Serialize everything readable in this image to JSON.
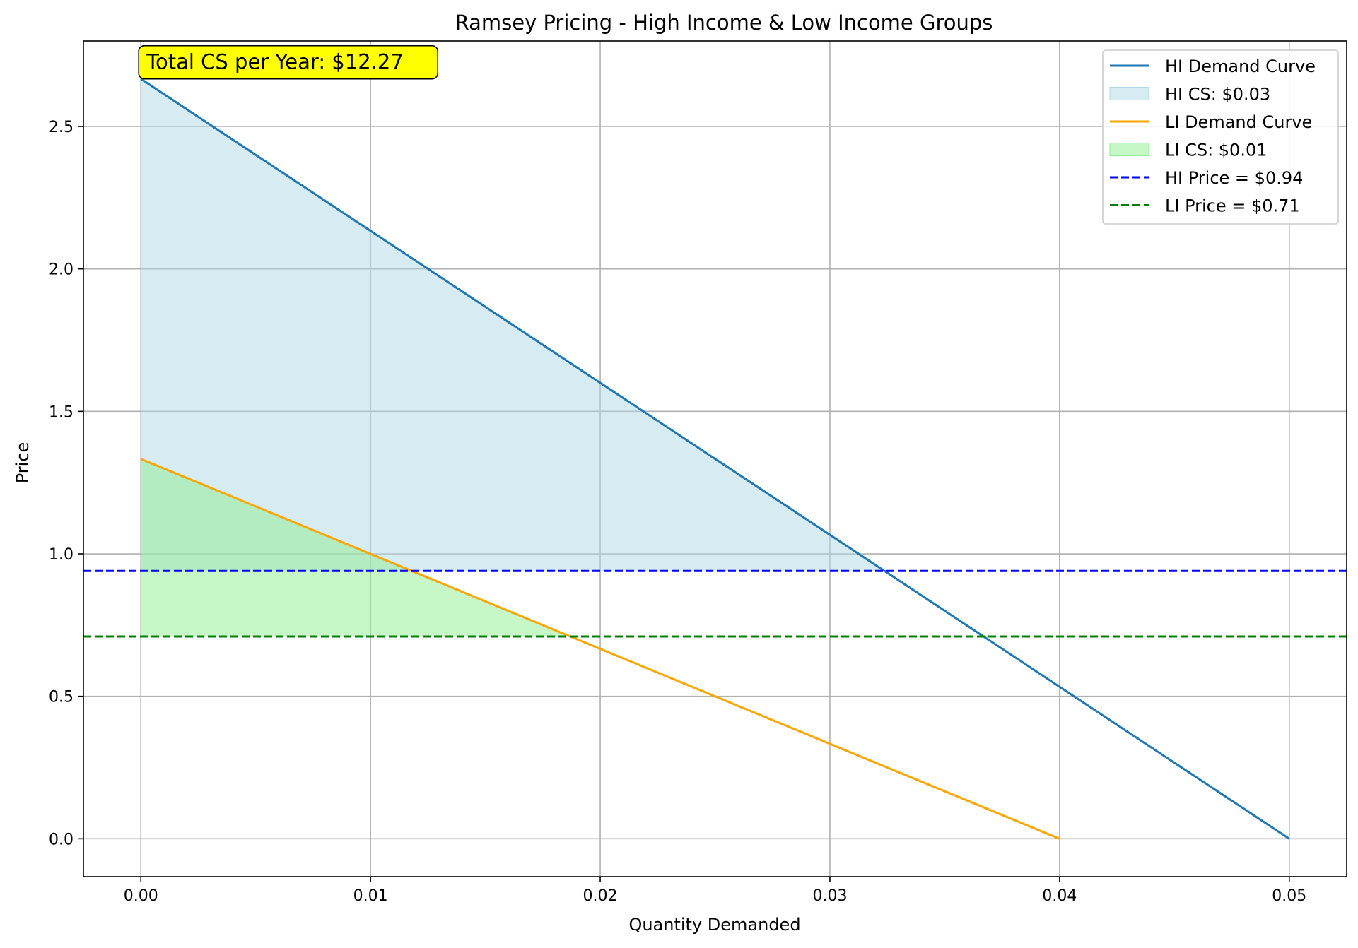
{
  "chart_data": {
    "type": "line",
    "title": "Ramsey Pricing - High Income & Low Income Groups",
    "xlabel": "Quantity Demanded",
    "ylabel": "Price",
    "xlim": [
      -0.0025,
      0.0525
    ],
    "ylim": [
      -0.133,
      2.8
    ],
    "x_ticks": [
      0.0,
      0.01,
      0.02,
      0.03,
      0.04,
      0.05
    ],
    "x_tick_labels": [
      "0.00",
      "0.01",
      "0.02",
      "0.03",
      "0.04",
      "0.05"
    ],
    "y_ticks": [
      0.0,
      0.5,
      1.0,
      1.5,
      2.0,
      2.5
    ],
    "y_tick_labels": [
      "0.0",
      "0.5",
      "1.0",
      "1.5",
      "2.0",
      "2.5"
    ],
    "grid": true,
    "legend_position": "top-right",
    "series": [
      {
        "name": "HI Demand Curve",
        "kind": "line",
        "color": "#1f77b4",
        "x": [
          0.0,
          0.05
        ],
        "y": [
          2.667,
          0.0
        ]
      },
      {
        "name": "HI CS: $0.03",
        "kind": "fill",
        "color": "#add8e6",
        "x": [
          0.0,
          0.0323
        ],
        "y_top": [
          2.667,
          0.94
        ],
        "y_base": 0.94
      },
      {
        "name": "LI Demand Curve",
        "kind": "line",
        "color": "#ffa500",
        "x": [
          0.0,
          0.04
        ],
        "y": [
          1.333,
          0.0
        ]
      },
      {
        "name": "LI CS: $0.01",
        "kind": "fill",
        "color": "#90ee90",
        "x": [
          0.0,
          0.0187
        ],
        "y_top": [
          1.333,
          0.71
        ],
        "y_base": 0.71
      },
      {
        "name": "HI Price = $0.94",
        "kind": "hline",
        "color": "#0000ff",
        "y": 0.94
      },
      {
        "name": "LI Price = $0.71",
        "kind": "hline",
        "color": "#008000",
        "y": 0.71
      }
    ],
    "annotation": {
      "text": "Total CS per Year: $12.27",
      "x": 0.0,
      "y": 2.667,
      "bg": "#ffff00"
    }
  }
}
